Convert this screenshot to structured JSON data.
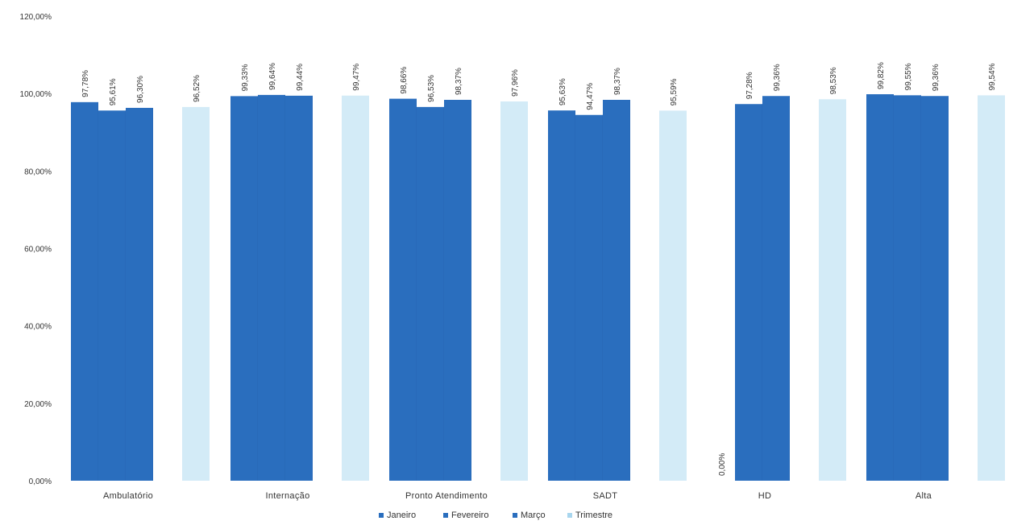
{
  "chart_data": {
    "type": "bar",
    "categories": [
      "Ambulatório",
      "Internação",
      "Pronto Atendimento",
      "SADT",
      "HD",
      "Alta"
    ],
    "series": [
      {
        "name": "Janeiro",
        "color": "#2a6ebe",
        "values": [
          97.78,
          99.33,
          98.66,
          95.63,
          0.0,
          99.82
        ]
      },
      {
        "name": "Fevereiro",
        "color": "#2a6ebe",
        "values": [
          95.61,
          99.64,
          96.53,
          94.47,
          97.28,
          99.55
        ]
      },
      {
        "name": "Março",
        "color": "#2a6ebe",
        "values": [
          96.3,
          99.44,
          98.37,
          98.37,
          99.36,
          99.36
        ]
      },
      {
        "name": "Trimestre",
        "color": "#d3ebf7",
        "values": [
          96.52,
          99.47,
          97.96,
          95.59,
          98.53,
          99.54
        ]
      }
    ],
    "data_labels": [
      [
        "97,78%",
        "95,61%",
        "96,30%",
        "96,52%"
      ],
      [
        "99,33%",
        "99,64%",
        "99,44%",
        "99,47%"
      ],
      [
        "98,66%",
        "96,53%",
        "98,37%",
        "97,96%"
      ],
      [
        "95,63%",
        "94,47%",
        "98,37%",
        "95,59%"
      ],
      [
        "0,00%",
        "97,28%",
        "99,36%",
        "98,53%"
      ],
      [
        "99,82%",
        "99,55%",
        "99,36%",
        "99,54%"
      ]
    ],
    "ylim": [
      0,
      120
    ],
    "y_ticks": [
      0,
      20,
      40,
      60,
      80,
      100,
      120
    ],
    "y_tick_labels": [
      "0,00%",
      "20,00%",
      "40,00%",
      "60,00%",
      "80,00%",
      "100,00%",
      "120,00%"
    ],
    "grid": false,
    "legend_position": "bottom",
    "title": "",
    "xlabel": "",
    "ylabel": ""
  }
}
